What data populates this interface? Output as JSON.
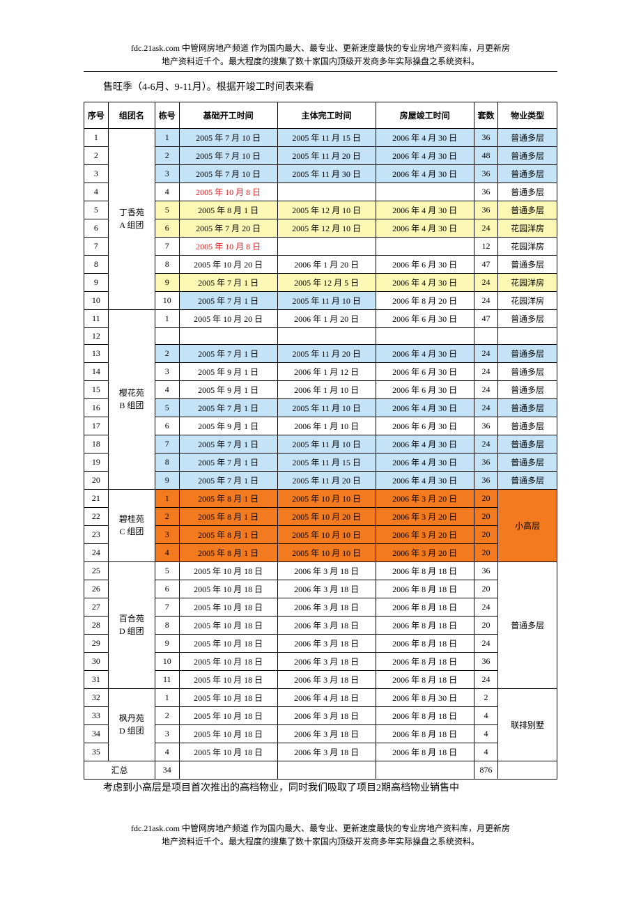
{
  "header_note_line1": "fdc.21ask.com 中管网房地产频道 作为国内最大、最专业、更新速度最快的专业房地产资料库，月更新房",
  "header_note_line2": "地产资料近千个。最大程度的搜集了数十家国内顶级开发商多年实际操盘之系统资料。",
  "intro_para": "售旺季（4-6月、9-11月）。根据开竣工时间表来看",
  "outro_para": "考虑到小高层是项目首次推出的高档物业，同时我们吸取了项目2期高档物业销售中",
  "footer_note_line1": "fdc.21ask.com 中管网房地产频道 作为国内最大、最专业、更新速度最快的专业房地产资料库，月更新房",
  "footer_note_line2": "地产资料近千个。最大程度的搜集了数十家国内顶级开发商多年实际操盘之系统资料。",
  "colors": {
    "highlight_blue": "#c5e3f7",
    "highlight_yellow": "#fdf8b4",
    "highlight_orange": "#f47a1f",
    "text_red": "#e02020",
    "border": "#000000",
    "background": "#ffffff"
  },
  "table": {
    "headers": [
      "序号",
      "组团名",
      "栋号",
      "基础开工时间",
      "主体完工时间",
      "房屋竣工时间",
      "套数",
      "物业类型"
    ],
    "summary": {
      "label": "汇总",
      "buildings": "34",
      "units": "876"
    },
    "groups": [
      {
        "name_line1": "丁香苑",
        "name_line2": "A 组团",
        "rowspan": 10,
        "rows": [
          {
            "seq": "1",
            "bld": "1",
            "d1": "2005 年 7 月 10 日",
            "d2": "2005 年 11 月 15 日",
            "d3": "2006 年 4 月 30 日",
            "cnt": "36",
            "type": "普通多层",
            "hl": "blue"
          },
          {
            "seq": "2",
            "bld": "2",
            "d1": "2005 年 7 月 10 日",
            "d2": "2005 年 11 月 20 日",
            "d3": "2006 年 4 月 30 日",
            "cnt": "48",
            "type": "普通多层",
            "hl": "blue"
          },
          {
            "seq": "3",
            "bld": "3",
            "d1": "2005 年 7 月 10 日",
            "d2": "2005 年 11 月 30 日",
            "d3": "2006 年 4 月 30 日",
            "cnt": "36",
            "type": "普通多层",
            "hl": "blue"
          },
          {
            "seq": "4",
            "bld": "4",
            "d1": "2005 年 10 月 8 日",
            "d2": "",
            "d3": "",
            "cnt": "36",
            "type": "普通多层",
            "d1_red": true
          },
          {
            "seq": "5",
            "bld": "5",
            "d1": "2005 年 8 月 1 日",
            "d2": "2005 年 12 月 10 日",
            "d3": "2006 年 4 月 30 日",
            "cnt": "36",
            "type": "普通多层",
            "hl": "yellow"
          },
          {
            "seq": "6",
            "bld": "6",
            "d1": "2005 年 7 月 20 日",
            "d2": "2005 年 12 月 10 日",
            "d3": "2006 年 4 月 30 日",
            "cnt": "24",
            "type": "花园洋房",
            "hl": "yellow"
          },
          {
            "seq": "7",
            "bld": "7",
            "d1": "2005 年 10 月 8 日",
            "d2": "",
            "d3": "",
            "cnt": "12",
            "type": "花园洋房",
            "d1_red": true
          },
          {
            "seq": "8",
            "bld": "8",
            "d1": "2005 年 10 月 20 日",
            "d2": "2006 年 1 月 20 日",
            "d3": "2006 年 6 月 30 日",
            "cnt": "47",
            "type": "普通多层"
          },
          {
            "seq": "9",
            "bld": "9",
            "d1": "2005 年 7 月 1 日",
            "d2": "2005 年 12 月 5 日",
            "d3": "2006 年 4 月 30 日",
            "cnt": "24",
            "type": "花园洋房",
            "hl": "yellow"
          },
          {
            "seq": "10",
            "bld": "10",
            "d1": "2005 年 7 月 1 日",
            "d2": "2005 年 11 月 10 日",
            "d3": "2006 年 8 月 20 日",
            "cnt": "24",
            "type": "花园洋房",
            "hl_d1d2": "blue"
          }
        ]
      },
      {
        "name_line1": "樱花苑",
        "name_line2": "B 组团",
        "rowspan": 10,
        "rows": [
          {
            "seq": "11",
            "bld": "1",
            "d1": "2005 年 10 月 20 日",
            "d2": "2006 年 1 月 20 日",
            "d3": "2006 年 6 月 30 日",
            "cnt": "47",
            "type": "普通多层"
          },
          {
            "seq": "12",
            "bld": "",
            "d1": "",
            "d2": "",
            "d3": "",
            "cnt": "",
            "type": ""
          },
          {
            "seq": "13",
            "bld": "2",
            "d1": "2005 年 7 月 1 日",
            "d2": "2005 年 11 月 20 日",
            "d3": "2006 年 4 月 30 日",
            "cnt": "24",
            "type": "普通多层",
            "hl": "blue"
          },
          {
            "seq": "14",
            "bld": "3",
            "d1": "2005 年 9 月 1 日",
            "d2": "2006 年 1 月 12 日",
            "d3": "2006 年 6 月 30 日",
            "cnt": "24",
            "type": "普通多层"
          },
          {
            "seq": "15",
            "bld": "4",
            "d1": "2005 年 9 月 1 日",
            "d2": "2006 年 1 月 10 日",
            "d3": "2006 年 6 月 30 日",
            "cnt": "24",
            "type": "普通多层"
          },
          {
            "seq": "16",
            "bld": "5",
            "d1": "2005 年 7 月 1 日",
            "d2": "2005 年 11 月 10 日",
            "d3": "2006 年 4 月 30 日",
            "cnt": "24",
            "type": "普通多层",
            "hl": "blue"
          },
          {
            "seq": "17",
            "bld": "6",
            "d1": "2005 年 9 月 1 日",
            "d2": "2006 年 1 月 10 日",
            "d3": "2006 年 6 月 30 日",
            "cnt": "36",
            "type": "普通多层"
          },
          {
            "seq": "18",
            "bld": "7",
            "d1": "2005 年 7 月 1 日",
            "d2": "2005 年 11 月 10 日",
            "d3": "2006 年 4 月 30 日",
            "cnt": "24",
            "type": "普通多层",
            "hl": "blue"
          },
          {
            "seq": "19",
            "bld": "8",
            "d1": "2005 年 7 月 1 日",
            "d2": "2005 年 11 月 15 日",
            "d3": "2006 年 4 月 30 日",
            "cnt": "36",
            "type": "普通多层",
            "hl": "blue"
          },
          {
            "seq": "20",
            "bld": "9",
            "d1": "2005 年 7 月 1 日",
            "d2": "2005 年 11 月 20 日",
            "d3": "2006 年 4 月 30 日",
            "cnt": "36",
            "type": "普通多层",
            "hl": "blue"
          }
        ]
      },
      {
        "name_line1": "碧桂苑",
        "name_line2": "C 组团",
        "rowspan": 4,
        "type_merged": "小高层",
        "type_rowspan": 4,
        "rows": [
          {
            "seq": "21",
            "bld": "1",
            "d1": "2005 年 8 月 1 日",
            "d2": "2005 年 10 月 10 日",
            "d3": "2006 年 3 月 20 日",
            "cnt": "20",
            "hl": "orange"
          },
          {
            "seq": "22",
            "bld": "2",
            "d1": "2005 年 8 月 1 日",
            "d2": "2005 年 10 月 20 日",
            "d3": "2006 年 3 月 20 日",
            "cnt": "20",
            "hl": "orange"
          },
          {
            "seq": "23",
            "bld": "3",
            "d1": "2005 年 8 月 1 日",
            "d2": "2005 年 10 月 10 日",
            "d3": "2006 年 3 月 20 日",
            "cnt": "20",
            "hl": "orange"
          },
          {
            "seq": "24",
            "bld": "4",
            "d1": "2005 年 8 月 1 日",
            "d2": "2005 年 10 月 10 日",
            "d3": "2006 年 3 月 20 日",
            "cnt": "20",
            "hl": "orange"
          }
        ]
      },
      {
        "name_line1": "百合苑",
        "name_line2": "D 组团",
        "rowspan": 7,
        "type_merged": "普通多层",
        "type_rowspan": 7,
        "rows": [
          {
            "seq": "25",
            "bld": "5",
            "d1": "2005 年 10 月 18 日",
            "d2": "2006 年 3  月 18 日",
            "d3": "2006 年 8 月 18 日",
            "cnt": "36"
          },
          {
            "seq": "26",
            "bld": "6",
            "d1": "2005 年 10 月 18 日",
            "d2": "2006 年 3  月 18 日",
            "d3": "2006 年 8 月 18 日",
            "cnt": "20"
          },
          {
            "seq": "27",
            "bld": "7",
            "d1": "2005 年 10 月 18 日",
            "d2": "2006 年 3  月 18 日",
            "d3": "2006 年 8 月 18 日",
            "cnt": "24"
          },
          {
            "seq": "28",
            "bld": "8",
            "d1": "2005 年 10 月 18 日",
            "d2": "2006 年 3  月 18 日",
            "d3": "2006 年 8 月 18 日",
            "cnt": "20"
          },
          {
            "seq": "29",
            "bld": "9",
            "d1": "2005 年 10 月 18 日",
            "d2": "2006 年 3  月 18 日",
            "d3": "2006 年 8 月 18 日",
            "cnt": "24"
          },
          {
            "seq": "30",
            "bld": "10",
            "d1": "2005 年 10 月 18 日",
            "d2": "2006 年 3  月 18 日",
            "d3": "2006 年 8 月 18 日",
            "cnt": "36"
          },
          {
            "seq": "31",
            "bld": "11",
            "d1": "2005 年 10 月 18 日",
            "d2": "2006 年 3  月 18 日",
            "d3": "2006 年 8 月 18 日",
            "cnt": "24"
          }
        ]
      },
      {
        "name_line1": "枫丹苑",
        "name_line2": "D 组团",
        "rowspan": 4,
        "type_merged": "联排别墅",
        "type_rowspan": 4,
        "rows": [
          {
            "seq": "32",
            "bld": "1",
            "d1": "2005 年 10 月 18 日",
            "d2": "2006 年 4  月 18 日",
            "d3": "2006 年 8 月 30 日",
            "cnt": "2"
          },
          {
            "seq": "33",
            "bld": "2",
            "d1": "2005 年 10 月 18 日",
            "d2": "2006 年 3  月 18 日",
            "d3": "2006 年 8 月 18 日",
            "cnt": "4"
          },
          {
            "seq": "34",
            "bld": "3",
            "d1": "2005 年 10 月 18 日",
            "d2": "2006 年 3  月 18 日",
            "d3": "2006 年 8 月 18 日",
            "cnt": "4"
          },
          {
            "seq": "35",
            "bld": "4",
            "d1": "2005 年 10 月 18 日",
            "d2": "2006 年 3  月 18 日",
            "d3": "2006 年 8 月 18 日",
            "cnt": "4"
          }
        ]
      }
    ]
  }
}
